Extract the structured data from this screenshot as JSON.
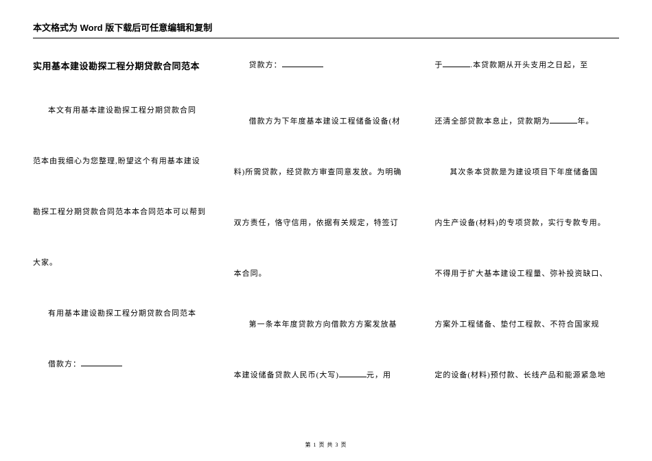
{
  "header": {
    "notice": "本文格式为 Word 版下载后可任意编辑和复制"
  },
  "col1": {
    "title": "实用基本建设勘探工程分期贷款合同范本",
    "p1": "本文有用基本建设勘探工程分期贷款合同",
    "p2": "范本由我细心为您整理,盼望这个有用基本建设",
    "p3": "勘探工程分期贷款合同范本本合同范本可以帮到",
    "p4": "大家。",
    "p5": "有用基本建设勘探工程分期贷款合同范本",
    "p6_label": "借款方：",
    "p6_blank": ""
  },
  "col2": {
    "p1_label": "贷款方：",
    "p2": "借款方为下年度基本建设工程储备设备(材",
    "p3": "料)所需贷款，经贷款方审查同意发放。为明确",
    "p4": "双方责任，恪守信用，依据有关规定，特签订",
    "p5": "本合同。",
    "p6": "第一条本年度贷款方向借款方方案发放基",
    "p7_a": "本建设储备贷款人民币(大写)",
    "p7_b": "元，用"
  },
  "col3": {
    "p1_a": "于",
    "p1_b": ".本贷款期从开头支用之日起，至",
    "p2_a": "还清全部贷款本息止，贷款期为",
    "p2_b": "年。",
    "p3": "其次条本贷款是为建设项目下年度储备国",
    "p4": "内生产设备(材料)的专项贷款，实行专款专用。",
    "p5": "不得用于扩大基本建设工程量、弥补投资缺口、",
    "p6": "方案外工程储备、垫付工程款、不符合国家规",
    "p7": "定的设备(材料)预付款、长线产品和能源紧急地"
  },
  "footer": {
    "text": "第 1 页 共 3 页"
  }
}
